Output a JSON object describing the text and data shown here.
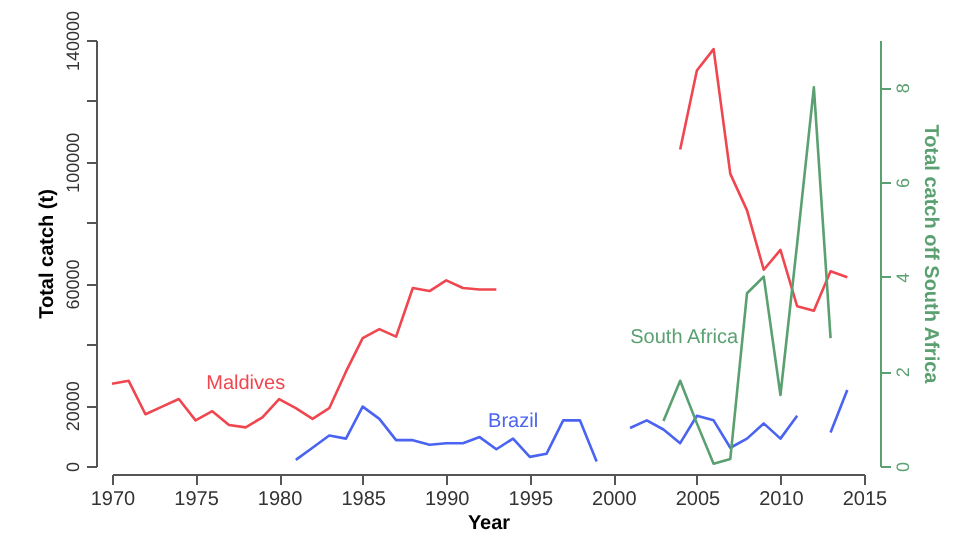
{
  "chart_data": {
    "type": "line",
    "xlabel": "Year",
    "ylabel": "Total catch (t)",
    "y2label": "Total catch off South Africa",
    "xlim": [
      1970,
      2015
    ],
    "xticks": [
      1970,
      1975,
      1980,
      1985,
      1990,
      1995,
      2000,
      2005,
      2010,
      2015
    ],
    "ylim": [
      0,
      140000
    ],
    "yticks": [
      0,
      {
        "value": 20000,
        "label": "20000"
      },
      {
        "value": 40000,
        "label": null
      },
      60000,
      {
        "value": 80000,
        "label": null
      },
      100000,
      {
        "value": 120000,
        "label": null
      },
      140000
    ],
    "y2lim": [
      0,
      9
    ],
    "y2ticks": [
      0,
      2,
      4,
      6,
      8
    ],
    "grid": false,
    "legend": false,
    "series": [
      {
        "name": "Maldives",
        "color": "#f0464f",
        "x": [
          1970,
          1971,
          1972,
          1973,
          1974,
          1975,
          1976,
          1977,
          1978,
          1979,
          1980,
          1981,
          1982,
          1983,
          1984,
          1985,
          1986,
          1987,
          1988,
          1989,
          1990,
          1991,
          1992,
          1993,
          1994,
          2003,
          2004,
          2005,
          2006,
          2007,
          2008,
          2009,
          2010,
          2011,
          2012,
          2013,
          2014
        ],
        "values": [
          27000,
          28000,
          17000,
          19500,
          22000,
          15000,
          18000,
          13500,
          12700,
          16000,
          22000,
          19000,
          15500,
          19000,
          31000,
          42000,
          45000,
          42500,
          58500,
          57500,
          61000,
          58500,
          58000,
          58000,
          null,
          null,
          104000,
          130000,
          137000,
          96000,
          84000,
          64500,
          71000,
          52500,
          51000,
          64000,
          62000
        ]
      },
      {
        "name": "Brazil",
        "color": "#4a63f0",
        "x": [
          1981,
          1982,
          1983,
          1984,
          1985,
          1986,
          1987,
          1988,
          1989,
          1990,
          1991,
          1992,
          1993,
          1994,
          1995,
          1996,
          1997,
          1998,
          1999,
          2000,
          2001,
          2002,
          2003,
          2004,
          2005,
          2006,
          2007,
          2008,
          2009,
          2010,
          2011,
          2012,
          2013,
          2014
        ],
        "values": [
          2000,
          6000,
          10000,
          9000,
          19500,
          15500,
          8500,
          8500,
          7000,
          7500,
          7500,
          9500,
          5500,
          9000,
          3000,
          4000,
          15000,
          15000,
          1500,
          null,
          12500,
          15000,
          12000,
          7500,
          16500,
          15000,
          6000,
          9000,
          14000,
          9000,
          16500,
          null,
          11000,
          25000
        ]
      },
      {
        "name": "South Africa",
        "color": "#5aa070",
        "axis": "y2",
        "x": [
          2003,
          2004,
          2005,
          2006,
          2007,
          2008,
          2009,
          2010,
          2011,
          2012,
          2013
        ],
        "values": [
          0.95,
          1.8,
          0.9,
          0.05,
          0.15,
          3.65,
          4.0,
          1.5,
          4.7,
          8.0,
          2.7
        ]
      }
    ]
  }
}
